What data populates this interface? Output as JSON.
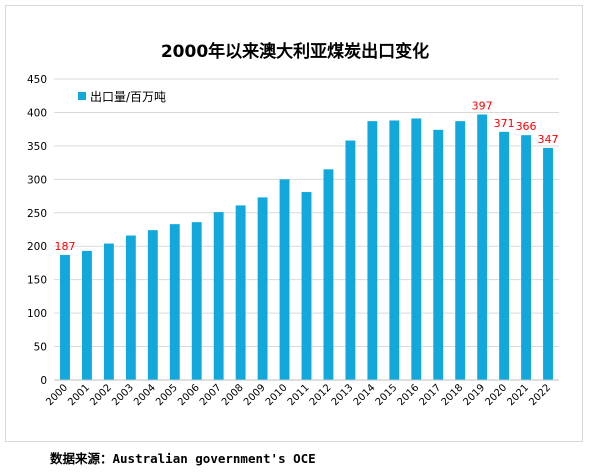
{
  "chart_data": {
    "type": "bar",
    "title": "2000年以来澳大利亚煤炭出口变化",
    "xlabel": "",
    "ylabel": "",
    "ylim": [
      0,
      450
    ],
    "yticks": [
      0,
      50,
      100,
      150,
      200,
      250,
      300,
      350,
      400,
      450
    ],
    "grid": true,
    "legend_position": "top-left",
    "categories": [
      "2000",
      "2001",
      "2002",
      "2003",
      "2004",
      "2005",
      "2006",
      "2007",
      "2008",
      "2009",
      "2010",
      "2011",
      "2012",
      "2013",
      "2014",
      "2015",
      "2016",
      "2017",
      "2018",
      "2019",
      "2020",
      "2021",
      "2022"
    ],
    "series": [
      {
        "name": "出口量/百万吨",
        "color": "#12a8dc",
        "values": [
          187,
          193,
          204,
          216,
          224,
          233,
          236,
          251,
          261,
          273,
          300,
          281,
          315,
          358,
          387,
          388,
          391,
          374,
          387,
          397,
          371,
          366,
          347
        ]
      }
    ],
    "data_labels": [
      {
        "category": "2000",
        "text": "187"
      },
      {
        "category": "2019",
        "text": "397"
      },
      {
        "category": "2020",
        "text": "371"
      },
      {
        "category": "2021",
        "text": "366"
      },
      {
        "category": "2022",
        "text": "347"
      }
    ],
    "data_label_color": "#ff0000"
  },
  "source_note": "数据来源：Australian government's OCE"
}
